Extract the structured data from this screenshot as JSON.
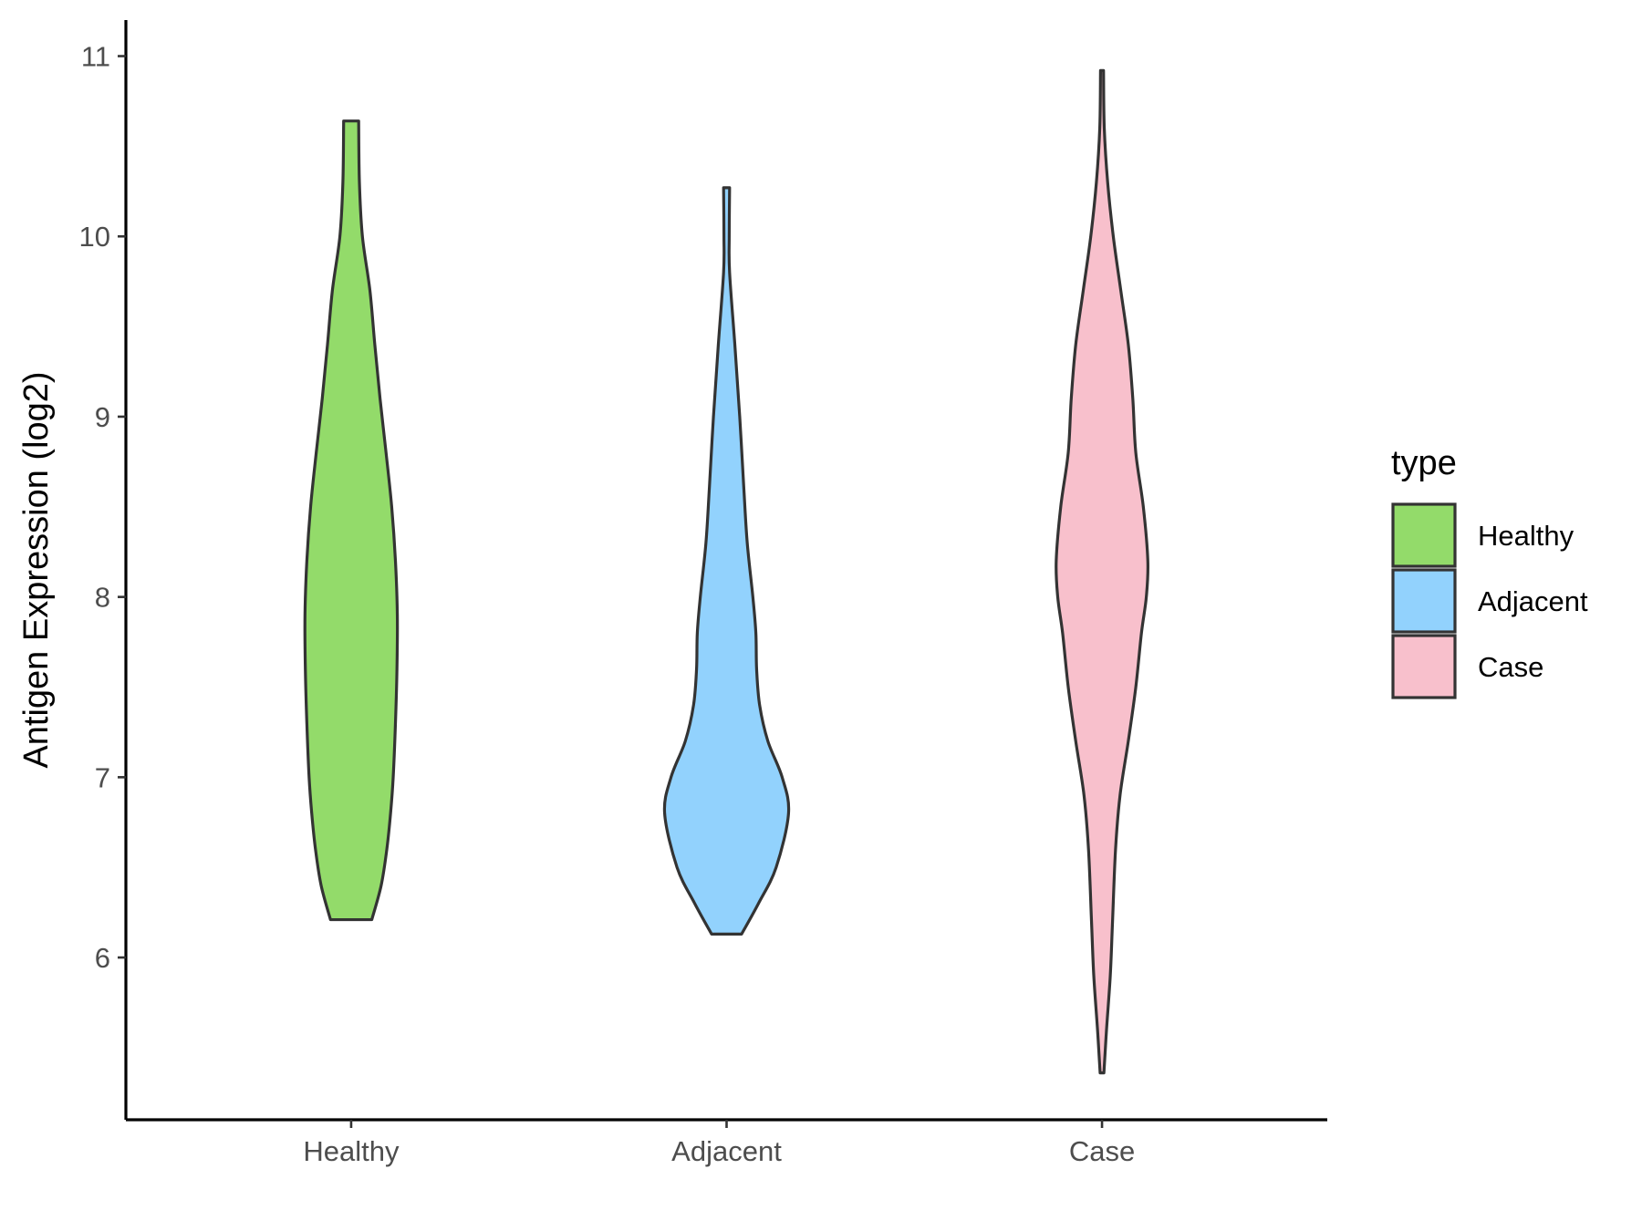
{
  "chart_data": {
    "type": "violin",
    "title": "",
    "xlabel": "",
    "ylabel": "Antigen Expression (log2)",
    "ylim": [
      5.1,
      11.2
    ],
    "yticks": [
      6,
      7,
      8,
      9,
      10,
      11
    ],
    "categories": [
      "Healthy",
      "Adjacent",
      "Case"
    ],
    "grid": false,
    "legend": {
      "title": "type",
      "position": "right",
      "entries": [
        "Healthy",
        "Adjacent",
        "Case"
      ]
    },
    "series": [
      {
        "category": "Healthy",
        "color": "#93DB6A",
        "min": 6.21,
        "max": 10.64,
        "half_width_profile": [
          [
            6.21,
            0.055
          ],
          [
            6.4,
            0.08
          ],
          [
            6.6,
            0.095
          ],
          [
            6.8,
            0.105
          ],
          [
            7.0,
            0.112
          ],
          [
            7.3,
            0.118
          ],
          [
            7.6,
            0.122
          ],
          [
            7.9,
            0.123
          ],
          [
            8.2,
            0.118
          ],
          [
            8.5,
            0.108
          ],
          [
            8.8,
            0.093
          ],
          [
            9.1,
            0.077
          ],
          [
            9.4,
            0.063
          ],
          [
            9.7,
            0.05
          ],
          [
            10.0,
            0.03
          ],
          [
            10.3,
            0.022
          ],
          [
            10.64,
            0.02
          ]
        ]
      },
      {
        "category": "Adjacent",
        "color": "#92D2FD",
        "min": 6.13,
        "max": 10.27,
        "half_width_profile": [
          [
            6.13,
            0.04
          ],
          [
            6.3,
            0.085
          ],
          [
            6.5,
            0.132
          ],
          [
            6.8,
            0.165
          ],
          [
            7.0,
            0.148
          ],
          [
            7.2,
            0.11
          ],
          [
            7.4,
            0.088
          ],
          [
            7.6,
            0.08
          ],
          [
            7.8,
            0.078
          ],
          [
            8.0,
            0.07
          ],
          [
            8.3,
            0.055
          ],
          [
            8.6,
            0.046
          ],
          [
            9.0,
            0.035
          ],
          [
            9.4,
            0.022
          ],
          [
            9.8,
            0.008
          ],
          [
            10.0,
            0.007
          ],
          [
            10.27,
            0.008
          ]
        ]
      },
      {
        "category": "Case",
        "color": "#F8C0CC",
        "min": 5.36,
        "max": 10.92,
        "half_width_profile": [
          [
            5.36,
            0.005
          ],
          [
            5.6,
            0.012
          ],
          [
            5.9,
            0.022
          ],
          [
            6.2,
            0.028
          ],
          [
            6.6,
            0.036
          ],
          [
            6.9,
            0.048
          ],
          [
            7.2,
            0.07
          ],
          [
            7.5,
            0.09
          ],
          [
            7.8,
            0.105
          ],
          [
            8.0,
            0.118
          ],
          [
            8.2,
            0.122
          ],
          [
            8.5,
            0.11
          ],
          [
            8.8,
            0.09
          ],
          [
            9.1,
            0.082
          ],
          [
            9.4,
            0.07
          ],
          [
            9.7,
            0.05
          ],
          [
            10.0,
            0.03
          ],
          [
            10.3,
            0.015
          ],
          [
            10.6,
            0.006
          ],
          [
            10.92,
            0.004
          ]
        ]
      }
    ]
  }
}
